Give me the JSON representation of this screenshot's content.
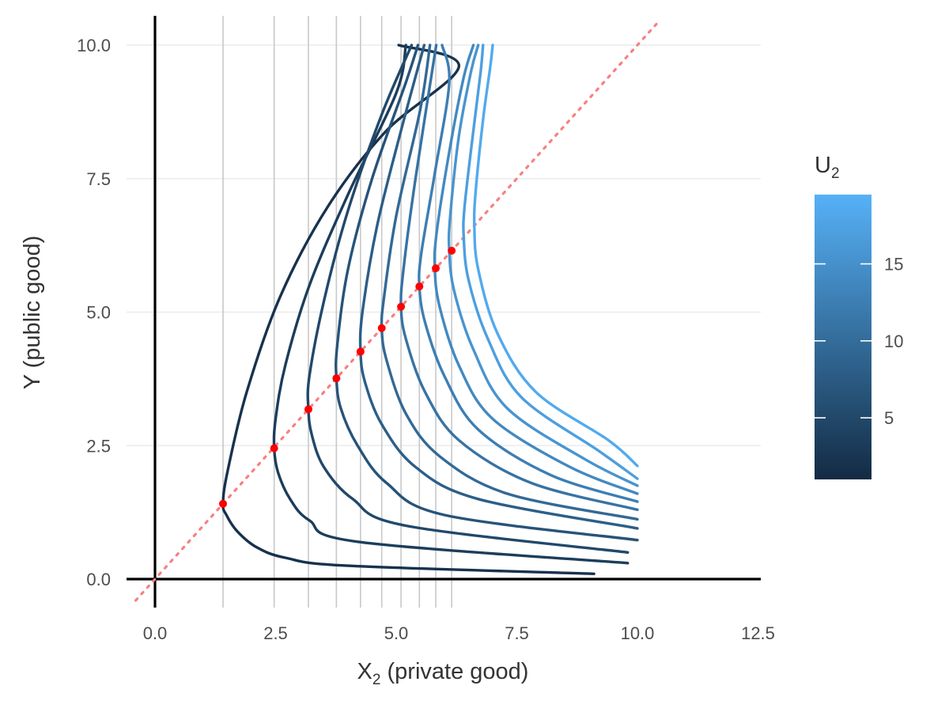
{
  "chart_data": {
    "type": "line",
    "title": "",
    "xlabel": {
      "main": "X",
      "sub": "2",
      "rest": " (private good)"
    },
    "ylabel": "Y (public good)",
    "xlim": [
      -0.6,
      12.5
    ],
    "ylim": [
      -0.45,
      10.5
    ],
    "x_ticks": [
      0,
      2.5,
      5,
      7.5,
      10,
      12.5
    ],
    "x_tick_labels": [
      "0.0",
      "2.5",
      "5.0",
      "7.5",
      "10.0",
      "12.5"
    ],
    "y_ticks": [
      0,
      2.5,
      5,
      7.5,
      10
    ],
    "y_tick_labels": [
      "0.0",
      "2.5",
      "5.0",
      "7.5",
      "10.0"
    ],
    "grid": "horizontal major lines",
    "legend": {
      "title_main": "U",
      "title_sub": "2",
      "placement": "right",
      "type": "colorbar",
      "range": [
        1,
        19.5
      ],
      "ticks": [
        5,
        10,
        15
      ],
      "tick_labels": [
        "5",
        "10",
        "15"
      ],
      "color_low": "#132b43",
      "color_high": "#56b1f7"
    },
    "diagonal": {
      "style": "dotted",
      "color": "#f88080",
      "x": [
        -0.4,
        10.4
      ],
      "y": [
        -0.4,
        10.4
      ]
    },
    "verticals_color": "#c8c8c8",
    "point_color": "#ff0000",
    "series": [
      {
        "u": 2.0,
        "x": [
          9.1,
          4.0,
          2.7,
          2.1,
          1.7,
          1.48,
          1.41,
          1.5,
          1.9,
          2.6,
          3.6,
          4.8,
          6.3,
          5.05
        ],
        "y": [
          0.1,
          0.25,
          0.4,
          0.6,
          0.9,
          1.2,
          1.41,
          2.0,
          3.5,
          5.3,
          7.0,
          8.4,
          9.6,
          10.0
        ]
      },
      {
        "u": 3.5,
        "x": [
          9.8,
          4.2,
          3.2,
          2.8,
          2.55,
          2.47,
          2.5,
          2.7,
          3.2,
          4.0,
          5.0,
          5.2
        ],
        "y": [
          0.3,
          0.7,
          1.1,
          1.5,
          2.0,
          2.45,
          3.0,
          4.0,
          5.5,
          7.2,
          9.1,
          10.0
        ]
      },
      {
        "u": 5.0,
        "x": [
          9.8,
          5.2,
          4.1,
          3.5,
          3.25,
          3.18,
          3.2,
          3.5,
          4.0,
          4.7,
          5.32
        ],
        "y": [
          0.5,
          1.0,
          1.5,
          2.1,
          2.7,
          3.18,
          3.8,
          5.2,
          6.9,
          8.7,
          10.0
        ]
      },
      {
        "u": 6.5,
        "x": [
          10.0,
          6.0,
          4.8,
          4.2,
          3.85,
          3.76,
          3.78,
          4.0,
          4.5,
          5.2,
          5.45
        ],
        "y": [
          0.73,
          1.2,
          1.8,
          2.5,
          3.2,
          3.76,
          4.4,
          5.8,
          7.5,
          9.3,
          10.0
        ]
      },
      {
        "u": 8.0,
        "x": [
          10.0,
          6.7,
          5.4,
          4.7,
          4.35,
          4.26,
          4.3,
          4.6,
          5.1,
          5.58
        ],
        "y": [
          0.95,
          1.5,
          2.1,
          2.9,
          3.7,
          4.26,
          5.0,
          6.6,
          8.4,
          10.0
        ]
      },
      {
        "u": 9.5,
        "x": [
          10.0,
          7.3,
          5.9,
          5.2,
          4.8,
          4.7,
          4.75,
          5.0,
          5.5,
          5.7
        ],
        "y": [
          1.12,
          1.6,
          2.3,
          3.1,
          4.1,
          4.7,
          5.3,
          6.8,
          8.8,
          10.0
        ]
      },
      {
        "u": 11.0,
        "x": [
          10.0,
          7.8,
          6.3,
          5.6,
          5.2,
          5.1,
          5.15,
          5.4,
          5.83
        ],
        "y": [
          1.3,
          1.8,
          2.6,
          3.5,
          4.5,
          5.1,
          5.8,
          7.5,
          10.0
        ]
      },
      {
        "u": 12.5,
        "x": [
          10.0,
          8.2,
          6.7,
          6.0,
          5.6,
          5.48,
          5.52,
          5.8,
          6.1,
          5.95
        ],
        "y": [
          1.45,
          1.95,
          2.8,
          3.8,
          4.8,
          5.48,
          6.1,
          7.6,
          9.3,
          10.0
        ]
      },
      {
        "u": 14.0,
        "x": [
          10.0,
          8.6,
          7.0,
          6.3,
          5.9,
          5.8,
          5.84,
          6.1,
          6.4,
          6.6
        ],
        "y": [
          1.6,
          2.1,
          3.0,
          4.0,
          5.1,
          5.82,
          6.5,
          8.0,
          9.4,
          10.0
        ]
      },
      {
        "u": 15.5,
        "x": [
          10.0,
          8.9,
          7.3,
          6.6,
          6.2,
          6.1,
          6.12,
          6.3,
          6.55,
          6.7
        ],
        "y": [
          1.75,
          2.25,
          3.2,
          4.3,
          5.4,
          6.15,
          6.8,
          8.3,
          9.5,
          10.0
        ]
      },
      {
        "u": 17.0,
        "x": [
          10.0,
          9.2,
          7.6,
          6.9,
          6.5,
          6.4,
          6.42,
          6.6,
          6.75,
          6.8
        ],
        "y": [
          1.88,
          2.4,
          3.4,
          4.5,
          5.6,
          6.4,
          7.0,
          8.4,
          9.5,
          10.0
        ]
      },
      {
        "u": 18.5,
        "x": [
          10.0,
          9.4,
          7.9,
          7.1,
          6.7,
          6.62,
          6.65,
          6.8,
          6.95,
          7.0
        ],
        "y": [
          2.12,
          2.6,
          3.5,
          4.6,
          5.8,
          6.6,
          7.3,
          8.6,
          9.6,
          10.0
        ]
      }
    ],
    "points": [
      {
        "x": 1.41,
        "y": 1.41
      },
      {
        "x": 2.47,
        "y": 2.45
      },
      {
        "x": 3.18,
        "y": 3.18
      },
      {
        "x": 3.76,
        "y": 3.76
      },
      {
        "x": 4.26,
        "y": 4.26
      },
      {
        "x": 4.7,
        "y": 4.7
      },
      {
        "x": 5.1,
        "y": 5.1
      },
      {
        "x": 5.48,
        "y": 5.48
      },
      {
        "x": 5.82,
        "y": 5.82
      },
      {
        "x": 6.15,
        "y": 6.15
      }
    ],
    "vertical_lines_x": [
      1.41,
      2.47,
      3.18,
      3.76,
      4.26,
      4.7,
      5.1,
      5.48,
      5.82,
      6.15
    ]
  }
}
